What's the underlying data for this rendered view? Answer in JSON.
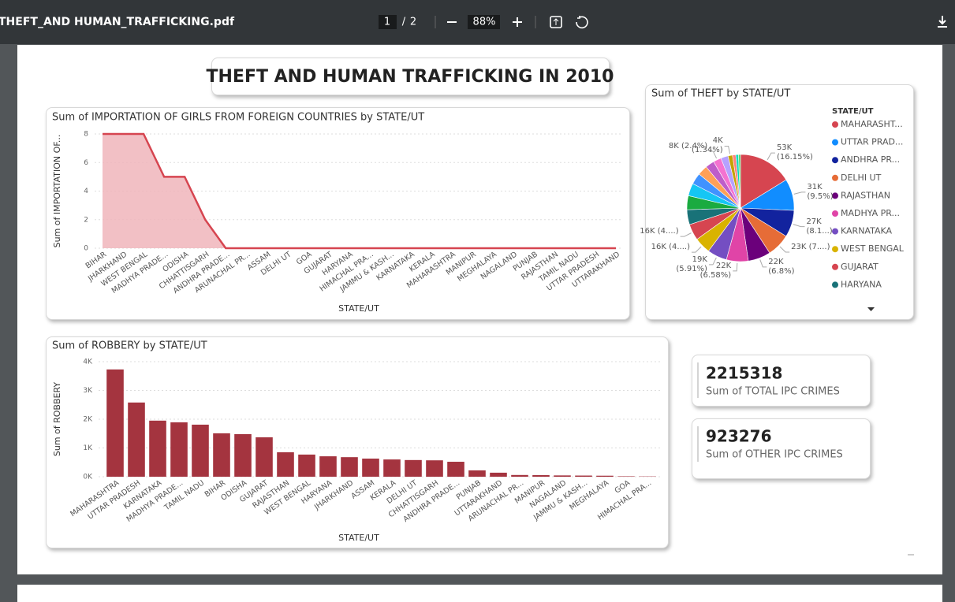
{
  "toolbar": {
    "file_name": "THEFT_AND HUMAN_TRAFFICKING.pdf",
    "current_page": "1",
    "page_separator": "/",
    "page_count": "2",
    "zoom": "88%"
  },
  "dashboard_title": "THEFT AND HUMAN TRAFFICKING IN 2010",
  "chart_data": [
    {
      "type": "area",
      "title": "Sum of IMPORTATION OF GIRLS FROM FOREIGN COUNTRIES by STATE/UT",
      "x_label": "STATE/UT",
      "y_label": "Sum of IMPORTATION OF...",
      "categories": [
        "BIHAR",
        "JHARKHAND",
        "WEST BENGAL",
        "MADHYA PRADE...",
        "ODISHA",
        "CHHATTISGARH",
        "ANDHRA PRADE...",
        "ARUNACHAL PR...",
        "ASSAM",
        "DELHI UT",
        "GOA",
        "GUJARAT",
        "HARYANA",
        "HIMACHAL PRA...",
        "JAMMU & KASH...",
        "KARNATAKA",
        "KERALA",
        "MAHARASHTRA",
        "MANIPUR",
        "MEGHALAYA",
        "NAGALAND",
        "PUNJAB",
        "RAJASTHAN",
        "TAMIL NADU",
        "UTTAR PRADESH",
        "UTTARAKHAND"
      ],
      "values": [
        8,
        8,
        8,
        5,
        5,
        2,
        0,
        0,
        0,
        0,
        0,
        0,
        0,
        0,
        0,
        0,
        0,
        0,
        0,
        0,
        0,
        0,
        0,
        0,
        0,
        0
      ],
      "color": "#d64550",
      "fill_color": "#f0b5bb",
      "ylim": [
        0,
        8
      ],
      "yticks": [
        0,
        2,
        4,
        6,
        8
      ],
      "grid": true
    },
    {
      "type": "pie",
      "title": "Sum of THEFT by STATE/UT",
      "legend_title": "STATE/UT",
      "categories": [
        "MAHARASHT...",
        "UTTAR PRAD...",
        "ANDHRA PR...",
        "DELHI UT",
        "RAJASTHAN",
        "MADHYA PR...",
        "KARNATAKA",
        "WEST BENGAL",
        "GUJARAT",
        "HARYANA",
        null,
        null,
        null,
        null,
        null,
        null,
        null,
        null,
        null,
        null,
        null
      ],
      "values": [
        16.15,
        9.5,
        8.1,
        7.0,
        6.8,
        6.58,
        5.91,
        4.9,
        4.9,
        4.5,
        4.2,
        3.8,
        3.4,
        3.0,
        2.7,
        2.4,
        2.2,
        1.34,
        1.0,
        0.8,
        0.6
      ],
      "value_labels": [
        "53K (16.15%)",
        "31K (9.5%)",
        "27K (8.1...)",
        "23K (7....)",
        "22K (6.8%)",
        "22K (6.58%)",
        "19K (5.91%)",
        "16K (4....)",
        "16K (4....)",
        null,
        null,
        null,
        null,
        null,
        null,
        "8K (2.4%)",
        null,
        "4K (1.34%)",
        null,
        null,
        null
      ],
      "colors": [
        "#d64550",
        "#118dff",
        "#12239e",
        "#e66c37",
        "#6b007b",
        "#e044a7",
        "#744ec2",
        "#d9b300",
        "#d64550",
        "#197278",
        "#1aab40",
        "#15c6f4",
        "#4092ff",
        "#ffa058",
        "#be5dc9",
        "#f472d0",
        "#b5a1ff",
        "#c4a200",
        "#ff8080",
        "#00dbbc",
        "#5bd667"
      ]
    },
    {
      "type": "bar",
      "title": "Sum of ROBBERY by STATE/UT",
      "x_label": "STATE/UT",
      "y_label": "Sum of ROBBERY",
      "categories": [
        "MAHARASHTRA",
        "UTTAR PRADESH",
        "KARNATAKA",
        "MADHYA PRADE...",
        "TAMIL NADU",
        "BIHAR",
        "ODISHA",
        "GUJARAT",
        "RAJASTHAN",
        "WEST BENGAL",
        "HARYANA",
        "JHARKHAND",
        "ASSAM",
        "KERALA",
        "DELHI UT",
        "CHHATTISGARH",
        "ANDHRA PRADE...",
        "PUNJAB",
        "UTTARAKHAND",
        "ARUNACHAL PR...",
        "MANIPUR",
        "NAGALAND",
        "JAMMU & KASH...",
        "MEGHALAYA",
        "GOA",
        "HIMACHAL PRA..."
      ],
      "values": [
        3730,
        2580,
        1950,
        1890,
        1810,
        1510,
        1480,
        1370,
        850,
        770,
        710,
        680,
        630,
        600,
        580,
        570,
        520,
        220,
        140,
        60,
        55,
        45,
        40,
        35,
        15,
        10
      ],
      "color": "#a4343f",
      "ylim": [
        0,
        4000
      ],
      "yticks": [
        {
          "value": 0,
          "label": "0K"
        },
        {
          "value": 1000,
          "label": "1K"
        },
        {
          "value": 2000,
          "label": "2K"
        },
        {
          "value": 3000,
          "label": "3K"
        },
        {
          "value": 4000,
          "label": "4K"
        }
      ],
      "grid": true
    }
  ],
  "cards": [
    {
      "value": 2215318,
      "label": "Sum of TOTAL IPC CRIMES"
    },
    {
      "value": 923276,
      "label": "Sum of OTHER IPC CRIMES"
    }
  ]
}
